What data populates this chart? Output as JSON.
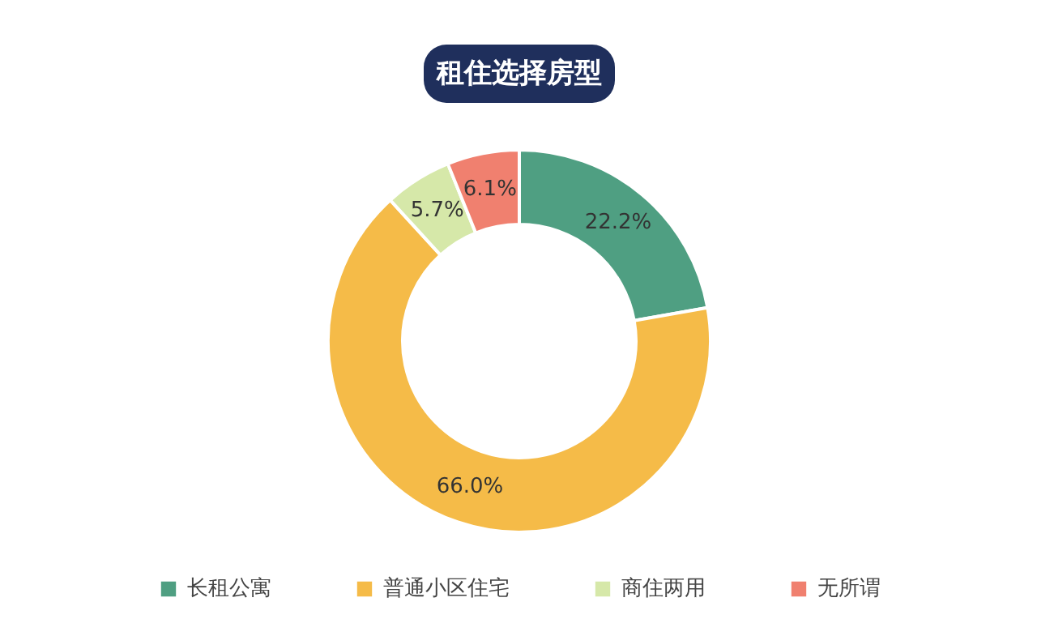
{
  "chart_data": {
    "type": "donut",
    "title": "租住选择房型",
    "categories": [
      "长租公寓",
      "普通小区住宅",
      "商住两用",
      "无所谓"
    ],
    "values": [
      22.2,
      66.0,
      5.7,
      6.1
    ],
    "value_labels": [
      "22.2%",
      "66.0%",
      "5.7%",
      "6.1%"
    ],
    "colors": [
      "#4f9f82",
      "#f5bb48",
      "#d6e8a9",
      "#f0806f"
    ],
    "legend": "bottom"
  }
}
